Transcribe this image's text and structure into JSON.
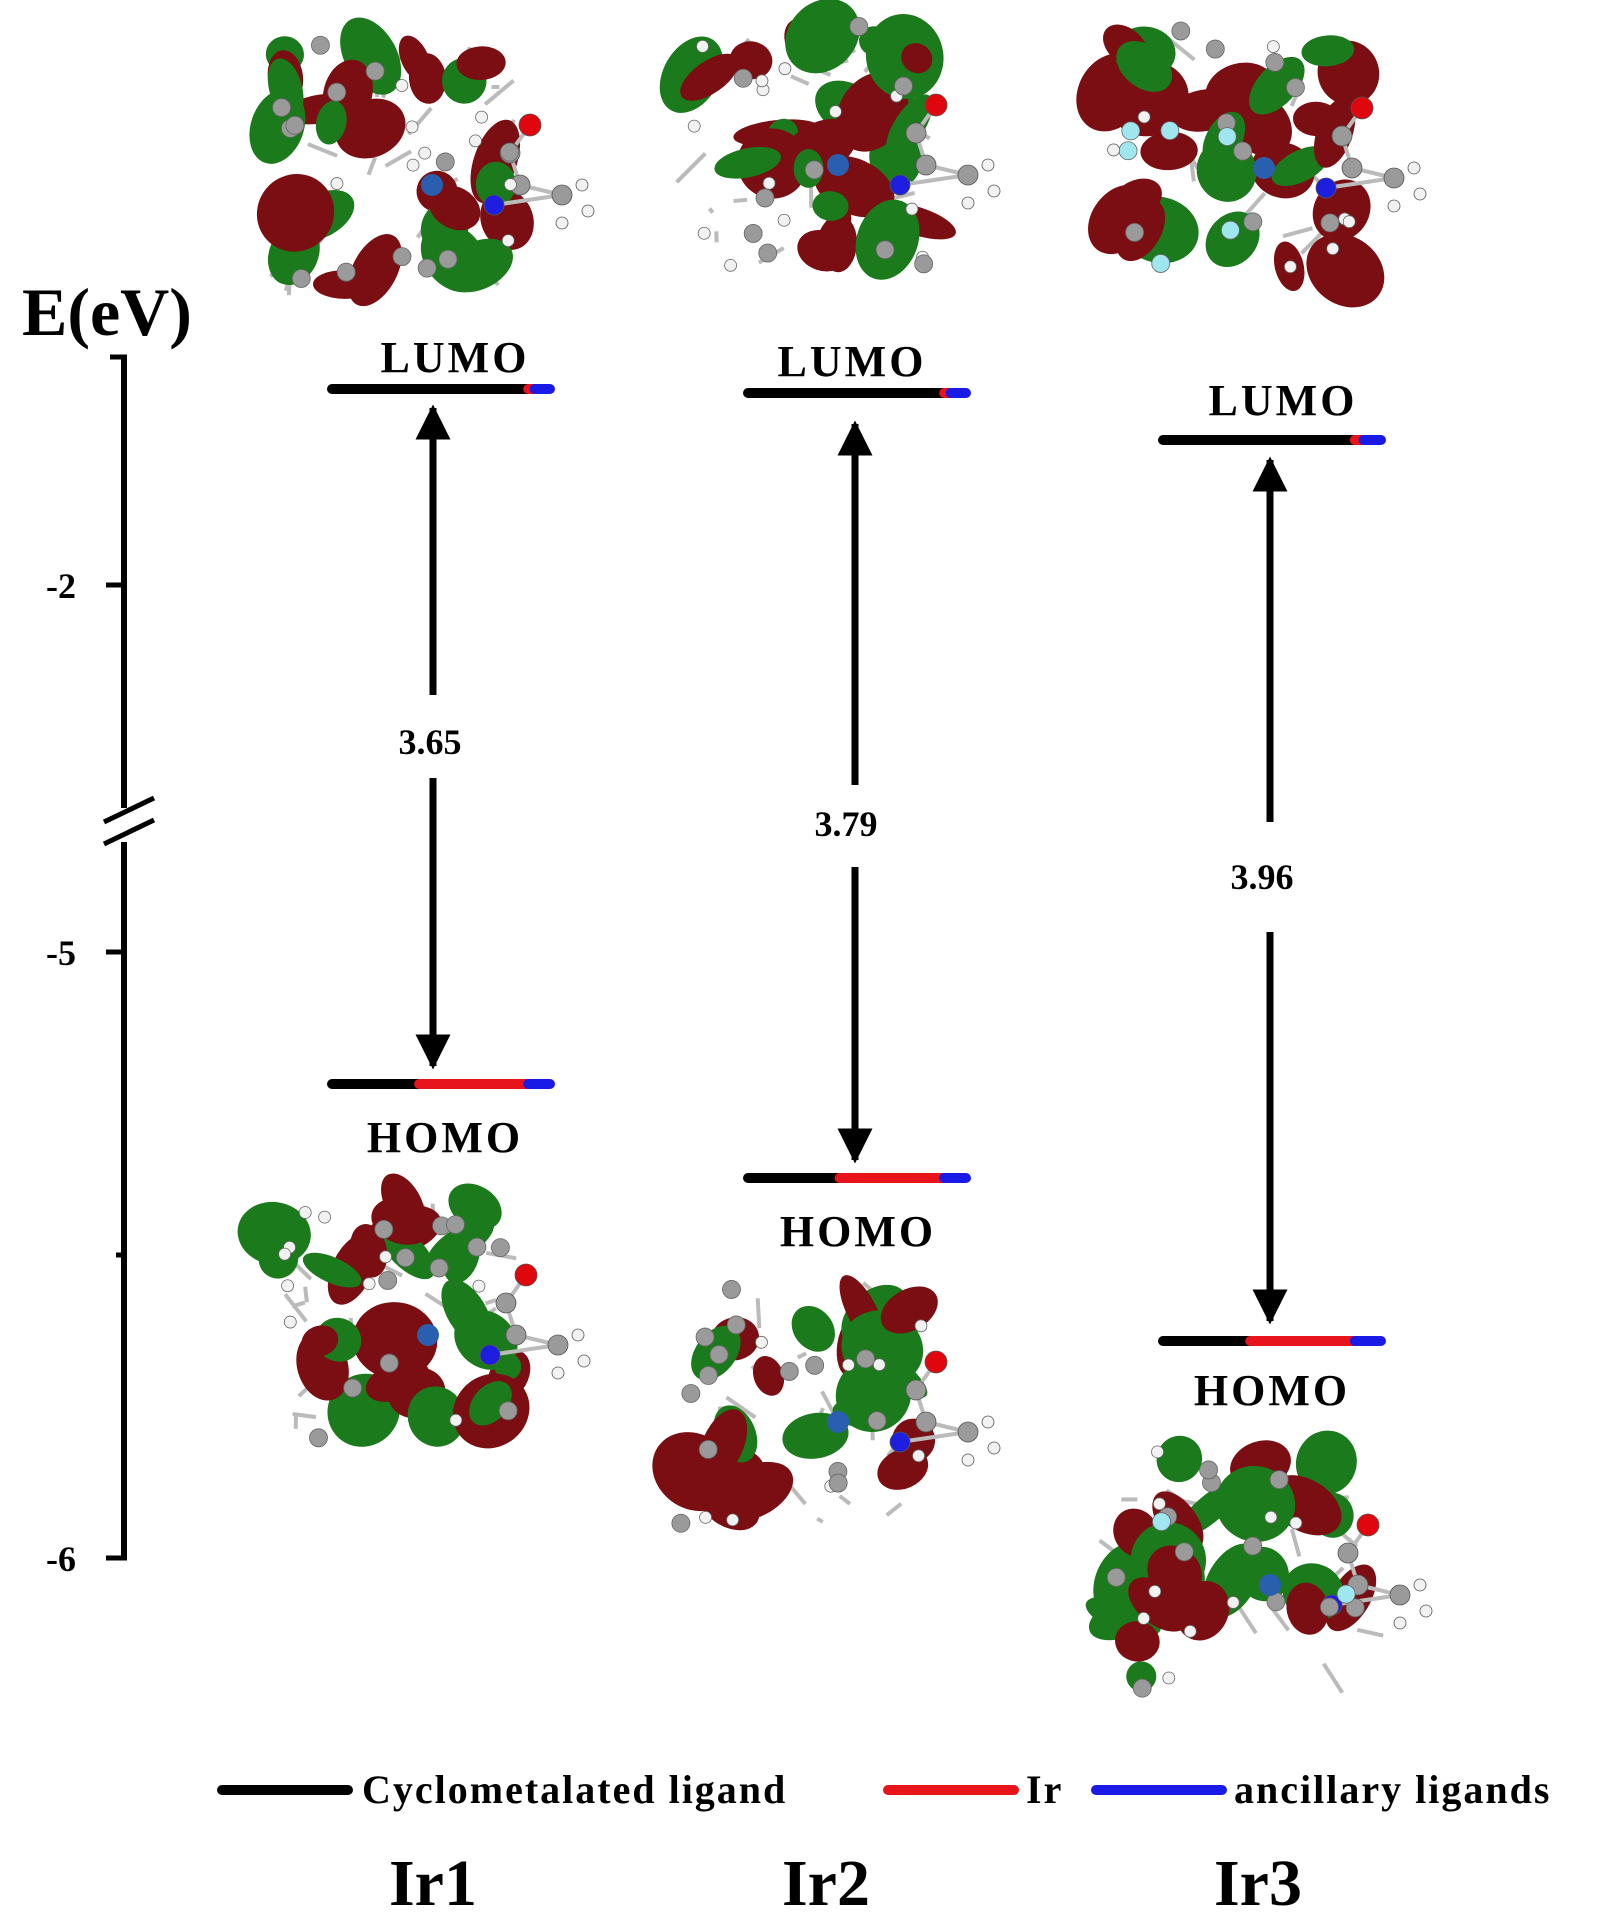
{
  "axis": {
    "title": "E(eV)",
    "ticks": [
      {
        "label": "-2",
        "value": -2
      },
      {
        "label": "-5",
        "value": -5
      },
      {
        "label": "-6",
        "value": -6
      }
    ],
    "has_break": true
  },
  "complexes": [
    {
      "name": "Ir1",
      "lumo_label": "LUMO",
      "homo_label": "HOMO",
      "gap_label": "3.65",
      "lumo_composition": {
        "cyclometalated": 0.9,
        "ir": 0.03,
        "ancillary": 0.07
      },
      "homo_composition": {
        "cyclometalated": 0.4,
        "ir": 0.5,
        "ancillary": 0.1
      }
    },
    {
      "name": "Ir2",
      "lumo_label": "LUMO",
      "homo_label": "HOMO",
      "gap_label": "3.79",
      "lumo_composition": {
        "cyclometalated": 0.9,
        "ir": 0.03,
        "ancillary": 0.07
      },
      "homo_composition": {
        "cyclometalated": 0.42,
        "ir": 0.48,
        "ancillary": 0.1
      }
    },
    {
      "name": "Ir3",
      "lumo_label": "LUMO",
      "homo_label": "HOMO",
      "gap_label": "3.96",
      "lumo_composition": {
        "cyclometalated": 0.88,
        "ir": 0.04,
        "ancillary": 0.08
      },
      "homo_composition": {
        "cyclometalated": 0.4,
        "ir": 0.48,
        "ancillary": 0.12
      }
    }
  ],
  "legend": [
    {
      "label": "Cyclometalated ligand",
      "color": "#000000"
    },
    {
      "label": "Ir",
      "color": "#e8141c"
    },
    {
      "label": "ancillary ligands",
      "color": "#1a1ae6"
    }
  ],
  "colors": {
    "orbital_positive": "#1b7a1b",
    "orbital_negative": "#7a0e12",
    "atom_carbon": "#9a9a9a",
    "atom_hydrogen": "#f2f2f2",
    "atom_oxygen": "#e0060e",
    "atom_nitrogen": "#1e1ee0",
    "atom_iridium": "#2a5fb0",
    "atom_fluorine": "#9fe6ef"
  }
}
